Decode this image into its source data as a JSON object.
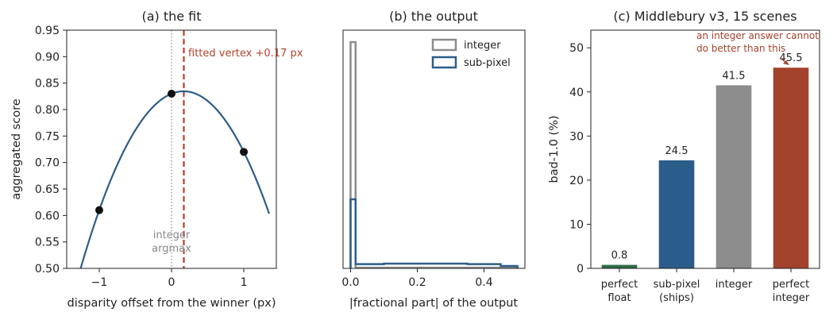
{
  "chart_data": [
    {
      "type": "line",
      "title": "(a) the fit",
      "xlabel": "disparity offset from the winner (px)",
      "ylabel": "aggregated score",
      "xlim": [
        -1.45,
        1.45
      ],
      "ylim": [
        0.5,
        0.95
      ],
      "xticks": [
        -1,
        0,
        1
      ],
      "xtick_labels": [
        "−1",
        "0",
        "1"
      ],
      "yticks": [
        0.5,
        0.55,
        0.6,
        0.65,
        0.7,
        0.75,
        0.8,
        0.85,
        0.9,
        0.95
      ],
      "ytick_labels": [
        "0.50",
        "0.55",
        "0.60",
        "0.65",
        "0.70",
        "0.75",
        "0.80",
        "0.85",
        "0.90",
        "0.95"
      ],
      "points": [
        {
          "x": -1,
          "y": 0.61
        },
        {
          "x": 0,
          "y": 0.83
        },
        {
          "x": 1,
          "y": 0.72
        }
      ],
      "curve_x_range": [
        -1.35,
        1.35
      ],
      "vertex_x": 0.17,
      "integer_argmax_x": 0,
      "annotations": {
        "vertex": "fitted vertex +0.17 px",
        "argmax_line1": "integer",
        "argmax_line2": "argmax"
      },
      "colors": {
        "curve": "#2b5d8a",
        "points": "#111111",
        "vertex": "#b0432c",
        "argmax": "#888888"
      }
    },
    {
      "type": "line",
      "title": "(b) the output",
      "xlabel": "|fractional part| of the output",
      "xlim": [
        -0.0225,
        0.5225
      ],
      "xticks": [
        0,
        0.2,
        0.4
      ],
      "xtick_labels": [
        "0.0",
        "0.2",
        "0.4"
      ],
      "ylim": [
        0,
        1
      ],
      "legend": {
        "position": "top-right"
      },
      "series": [
        {
          "name": "integer",
          "color": "#8c8c8c",
          "x": [
            0,
            0.015,
            0.015,
            0.5
          ],
          "y": [
            0.95,
            0.95,
            0.003,
            0.003
          ]
        },
        {
          "name": "sub-pixel",
          "color": "#2b5d8a",
          "x": [
            0,
            0.015,
            0.015,
            0.1,
            0.1,
            0.35,
            0.35,
            0.45,
            0.45,
            0.5
          ],
          "y": [
            0.29,
            0.29,
            0.018,
            0.018,
            0.02,
            0.02,
            0.018,
            0.018,
            0.01,
            0.01
          ]
        }
      ]
    },
    {
      "type": "bar",
      "title": "(c) Middlebury v3, 15 scenes",
      "ylabel": "bad-1.0 (%)",
      "ylim": [
        0,
        54
      ],
      "yticks": [
        0,
        10,
        20,
        30,
        40,
        50
      ],
      "ytick_labels": [
        "0",
        "10",
        "20",
        "30",
        "40",
        "50"
      ],
      "bars": [
        {
          "line1": "perfect",
          "line2": "float",
          "value": 0.8,
          "value_label": "0.8",
          "color": "#2f6b47"
        },
        {
          "line1": "sub-pixel",
          "line2": "(ships)",
          "value": 24.5,
          "value_label": "24.5",
          "color": "#2b5d8a"
        },
        {
          "line1": "integer",
          "line2": "",
          "value": 41.5,
          "value_label": "41.5",
          "color": "#8c8c8c"
        },
        {
          "line1": "perfect",
          "line2": "integer",
          "value": 45.5,
          "value_label": "45.5",
          "color": "#a3432b"
        }
      ],
      "annotation": {
        "line1": "an integer answer cannot",
        "line2": "do better than this",
        "color": "#a3432b"
      }
    }
  ]
}
